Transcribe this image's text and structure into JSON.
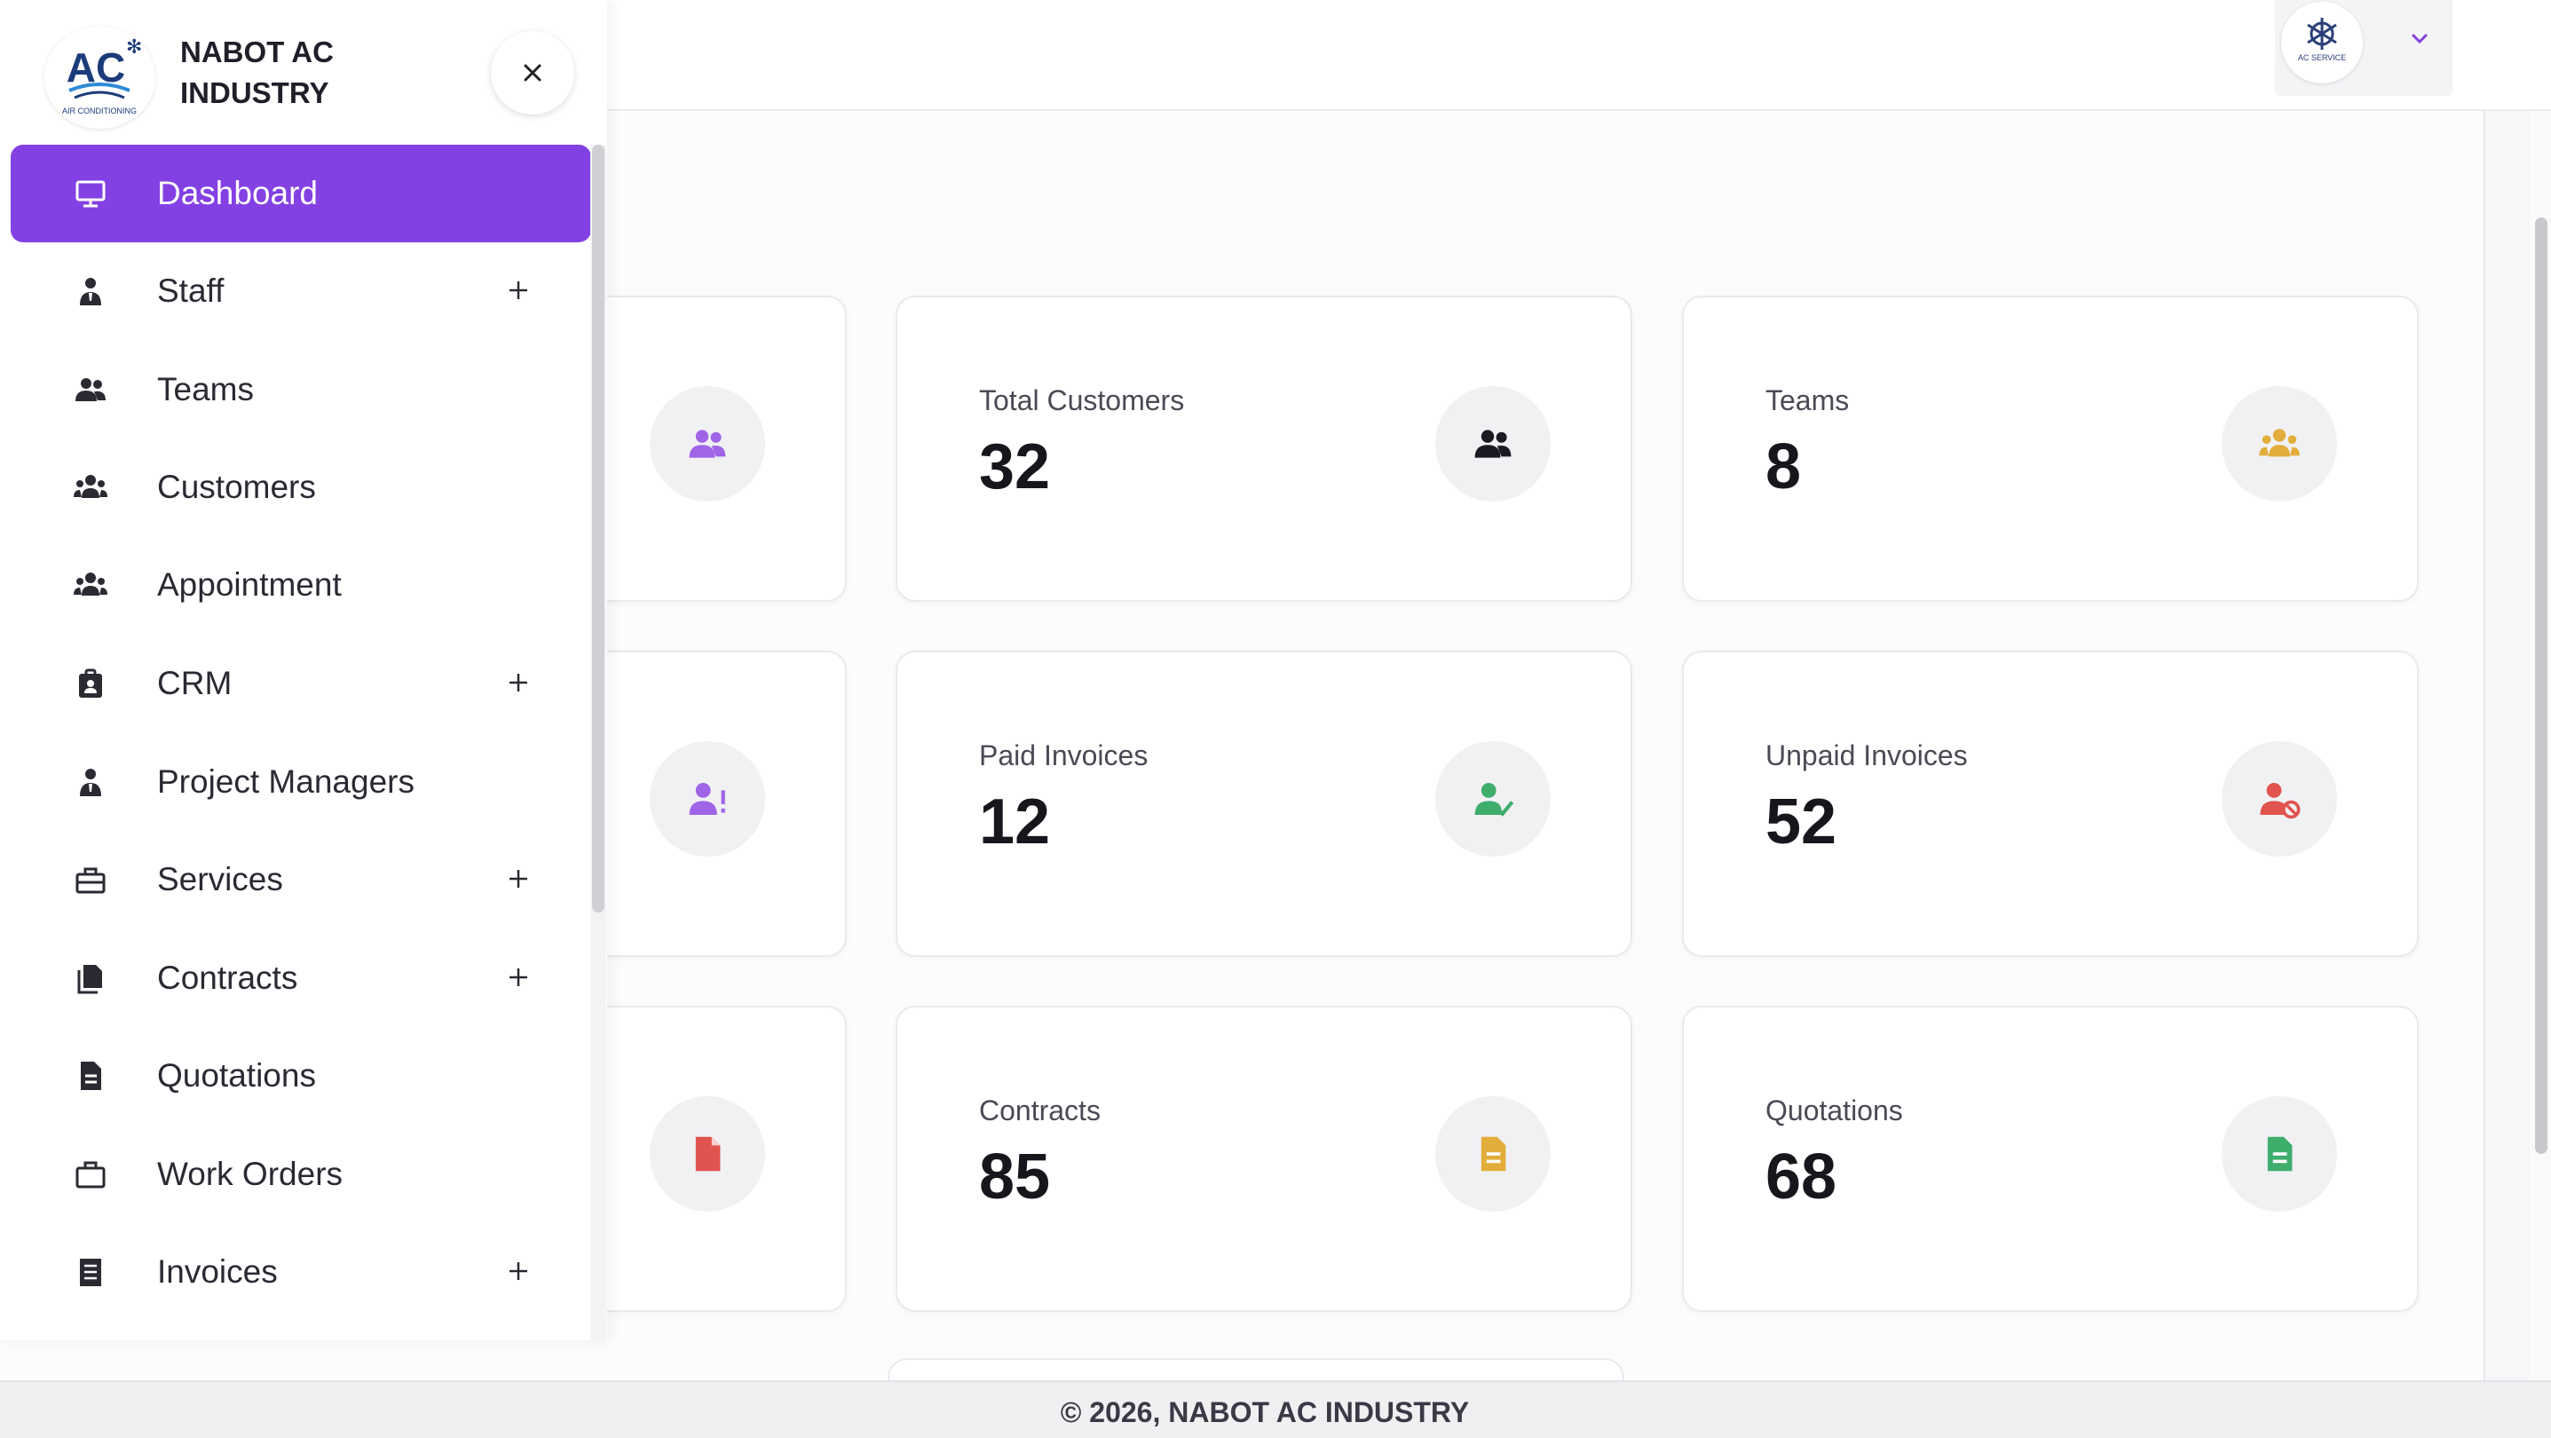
{
  "brand": {
    "name": "NABOT AC INDUSTRY",
    "logo_text": "AC",
    "logo_subtext": "AIR CONDITIONING",
    "user_logo_text": "AC SERVICE"
  },
  "sidebar": {
    "items": [
      {
        "label": "Dashboard",
        "icon": "monitor-icon",
        "active": true,
        "expandable": false
      },
      {
        "label": "Staff",
        "icon": "user-tie-icon",
        "expandable": true
      },
      {
        "label": "Teams",
        "icon": "users-icon",
        "expandable": false
      },
      {
        "label": "Customers",
        "icon": "users-group-icon",
        "expandable": false
      },
      {
        "label": "Appointment",
        "icon": "users-group-icon",
        "expandable": false
      },
      {
        "label": "CRM",
        "icon": "id-badge-icon",
        "expandable": true
      },
      {
        "label": "Project Managers",
        "icon": "user-tie-icon",
        "expandable": false
      },
      {
        "label": "Services",
        "icon": "toolbox-icon",
        "expandable": true
      },
      {
        "label": "Contracts",
        "icon": "copy-icon",
        "expandable": true
      },
      {
        "label": "Quotations",
        "icon": "file-lines-icon",
        "expandable": false
      },
      {
        "label": "Work Orders",
        "icon": "briefcase-icon",
        "expandable": false
      },
      {
        "label": "Invoices",
        "icon": "receipt-icon",
        "expandable": true
      }
    ]
  },
  "cards": [
    {
      "label": "",
      "value": "",
      "icon": "users-icon",
      "color": "#a064e6"
    },
    {
      "label": "Total Customers",
      "value": "32",
      "icon": "users-icon",
      "color": "#1a1a22"
    },
    {
      "label": "Teams",
      "value": "8",
      "icon": "users-group-icon",
      "color": "#e2ad3a"
    },
    {
      "label": "",
      "value": "",
      "icon": "user-alert-icon",
      "color": "#a064e6"
    },
    {
      "label": "Paid Invoices",
      "value": "12",
      "icon": "user-check-icon",
      "color": "#3fae6c"
    },
    {
      "label": "Unpaid Invoices",
      "value": "52",
      "icon": "user-block-icon",
      "color": "#e0534e"
    },
    {
      "label": "",
      "value": "",
      "icon": "file-icon",
      "color": "#e0534e"
    },
    {
      "label": "Contracts",
      "value": "85",
      "icon": "file-lines-icon",
      "color": "#e2ad3a"
    },
    {
      "label": "Quotations",
      "value": "68",
      "icon": "file-lines-icon",
      "color": "#3fae6c"
    }
  ],
  "footer": {
    "text": "© 2026, NABOT AC INDUSTRY"
  },
  "colors": {
    "accent": "#8340e3"
  }
}
